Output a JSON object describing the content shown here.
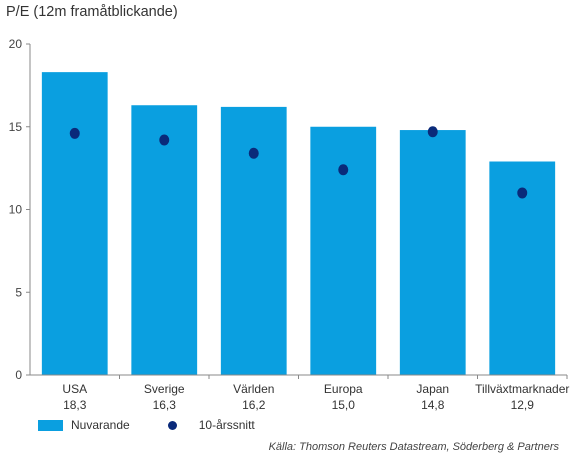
{
  "chart_data": {
    "type": "bar",
    "title": "P/E (12m framåtblickande)",
    "categories": [
      "USA",
      "Sverige",
      "Världen",
      "Europa",
      "Japan",
      "Tillväxtmarknader"
    ],
    "value_labels": [
      "18,3",
      "16,3",
      "16,2",
      "15,0",
      "14,8",
      "12,9"
    ],
    "series": [
      {
        "name": "Nuvarande",
        "kind": "bar",
        "color": "#0a9fe0",
        "values": [
          18.3,
          16.3,
          16.2,
          15.0,
          14.8,
          12.9
        ]
      },
      {
        "name": "10-årssnitt",
        "kind": "point",
        "color": "#0a2a7a",
        "values": [
          14.6,
          14.2,
          13.4,
          12.4,
          14.7,
          11.0
        ]
      }
    ],
    "ylim": [
      0,
      20
    ],
    "yticks": [
      "0",
      "5",
      "10",
      "15",
      "20"
    ],
    "grid": false,
    "legend_position": "bottom-left",
    "source": "Källa: Thomson Reuters Datastream, Söderberg & Partners"
  }
}
